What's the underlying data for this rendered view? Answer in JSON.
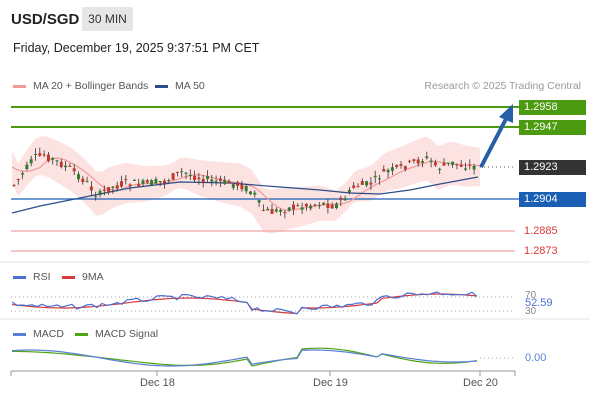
{
  "header": {
    "symbol": "USD/SGD",
    "timeframe": "30 MIN",
    "timestamp": "Friday, December 19, 2025 9:37:51 PM CET"
  },
  "legend": {
    "ma20_label": "MA 20 + Bollinger Bands",
    "ma50_label": "MA 50",
    "credit": "Research © 2025 Trading Central"
  },
  "colors": {
    "green": "#4c9a0f",
    "blue": "#1a5fb4",
    "red": "#d93a3a",
    "dark": "#333333",
    "band_fill": "#fde2e2",
    "ma20": "#f29a9a",
    "ma50": "#2a4e8a",
    "rsi": "#4a6fd0",
    "rsi_ma": "#d93a3a",
    "macd": "#5b7fd8",
    "macd_signal": "#4ea516"
  },
  "price_levels": {
    "resistance2": "1.2958",
    "resistance1": "1.2947",
    "last": "1.2923",
    "pivot": "1.2904",
    "support1": "1.2885",
    "support2": "1.2873"
  },
  "rsi_panel": {
    "rsi_label": "RSI",
    "ma_label": "9MA",
    "level_70": "70",
    "value": "52.59",
    "level_30": "30"
  },
  "macd_panel": {
    "macd_label": "MACD",
    "signal_label": "MACD Signal",
    "value": "0.00"
  },
  "x_axis": {
    "ticks": [
      "Dec 18",
      "Dec 19",
      "Dec 20"
    ]
  }
}
